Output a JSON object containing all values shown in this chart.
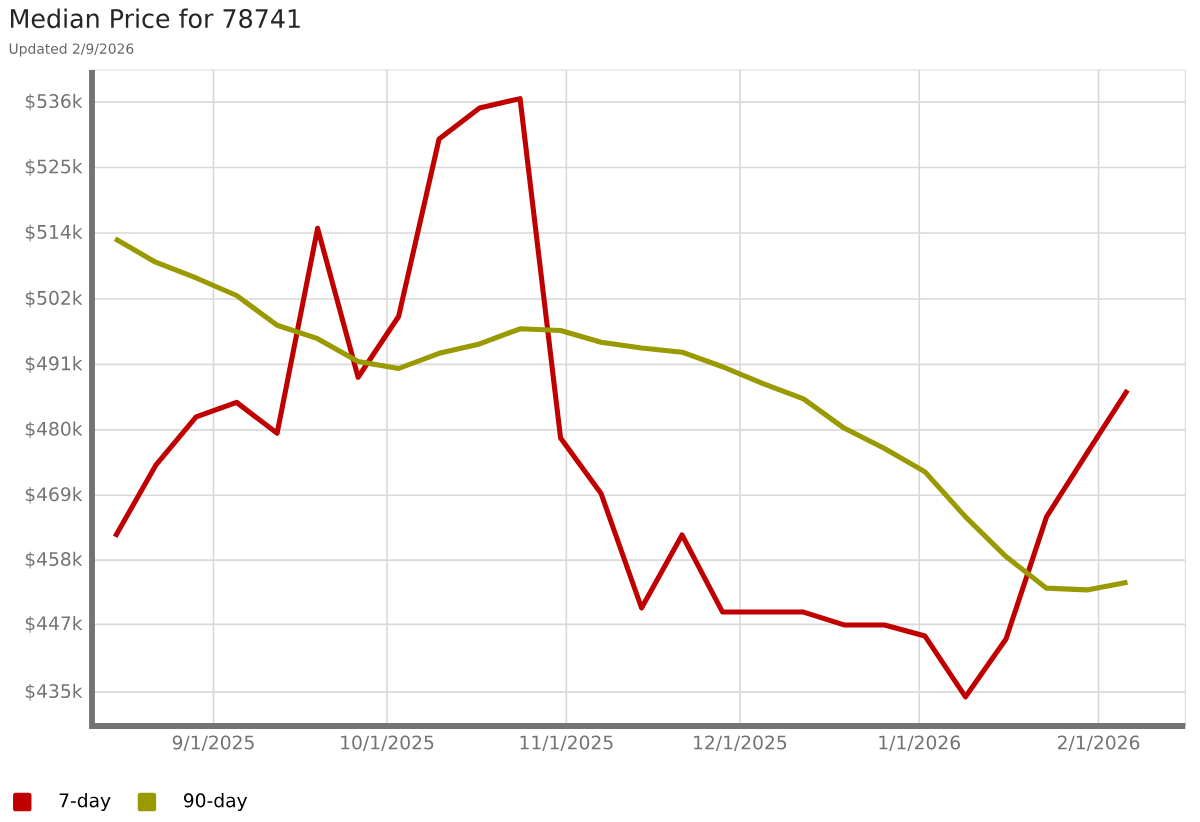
{
  "chart_data": {
    "type": "line",
    "title": "Median Price for 78741",
    "subtitle": "Updated 2/9/2026",
    "x": [
      "2025-08-15",
      "2025-08-22",
      "2025-08-29",
      "2025-09-05",
      "2025-09-12",
      "2025-09-19",
      "2025-09-26",
      "2025-10-03",
      "2025-10-10",
      "2025-10-17",
      "2025-10-24",
      "2025-10-31",
      "2025-11-07",
      "2025-11-14",
      "2025-11-21",
      "2025-11-28",
      "2025-12-05",
      "2025-12-12",
      "2025-12-19",
      "2025-12-26",
      "2026-01-02",
      "2026-01-09",
      "2026-01-16",
      "2026-01-23",
      "2026-01-30",
      "2026-02-06"
    ],
    "series": [
      {
        "name": "7-day",
        "color": "#c00000",
        "values": [
          461.6,
          473.8,
          482.1,
          484.6,
          479.3,
          514.4,
          488.9,
          499.3,
          529.7,
          535,
          536.6,
          478.5,
          469,
          449.4,
          461.9,
          448.7,
          448.7,
          448.7,
          446.5,
          446.5,
          444.6,
          434.2,
          444.1,
          465,
          475.9,
          486.7
        ]
      },
      {
        "name": "90-day",
        "color": "#999900",
        "values": [
          512.6,
          508.6,
          505.9,
          502.9,
          497.8,
          495.5,
          491.6,
          490.4,
          493,
          494.6,
          497.2,
          496.9,
          494.9,
          493.9,
          493.2,
          490.7,
          487.8,
          485.2,
          480.2,
          476.7,
          472.7,
          465,
          458.2,
          452.8,
          452.5,
          453.8
        ]
      }
    ],
    "xlim": [
      "2025-08-11",
      "2026-02-16"
    ],
    "xticks": [
      {
        "value": "2025-09-01",
        "label": "9/1/2025"
      },
      {
        "value": "2025-10-01",
        "label": "10/1/2025"
      },
      {
        "value": "2025-11-01",
        "label": "11/1/2025"
      },
      {
        "value": "2025-12-01",
        "label": "12/1/2025"
      },
      {
        "value": "2026-01-01",
        "label": "1/1/2026"
      },
      {
        "value": "2026-02-01",
        "label": "2/1/2026"
      }
    ],
    "ylim": [
      429.2,
      541.5
    ],
    "yticks": [
      {
        "value": 435,
        "label": "$435k"
      },
      {
        "value": 446.6,
        "label": "$447k"
      },
      {
        "value": 457.6,
        "label": "$458k"
      },
      {
        "value": 468.7,
        "label": "$469k"
      },
      {
        "value": 479.9,
        "label": "$480k"
      },
      {
        "value": 491.1,
        "label": "$491k"
      },
      {
        "value": 502.3,
        "label": "$502k"
      },
      {
        "value": 513.6,
        "label": "$514k"
      },
      {
        "value": 524.8,
        "label": "$525k"
      },
      {
        "value": 536,
        "label": "$536k"
      }
    ],
    "grid": true,
    "legend": "bottom left",
    "marker": "none",
    "line_style": "solid"
  }
}
